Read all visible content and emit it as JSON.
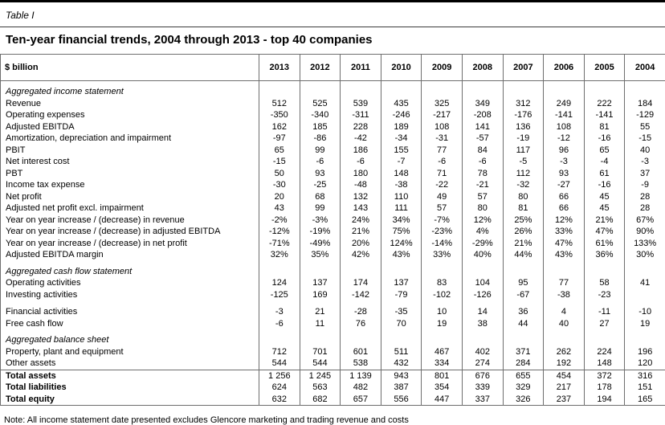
{
  "page": {
    "table_label": "Table I",
    "title": "Ten-year financial trends, 2004 through 2013 - top 40 companies",
    "note": "Note: All income statement date presented excludes Glencore marketing and trading revenue and costs"
  },
  "table": {
    "unit_header": "$ billion",
    "years": [
      "2013",
      "2012",
      "2011",
      "2010",
      "2009",
      "2008",
      "2007",
      "2006",
      "2005",
      "2004"
    ],
    "rows": [
      {
        "type": "section",
        "label": "Aggregated income statement"
      },
      {
        "type": "data",
        "label": "Revenue",
        "values": [
          "512",
          "525",
          "539",
          "435",
          "325",
          "349",
          "312",
          "249",
          "222",
          "184"
        ]
      },
      {
        "type": "data",
        "label": "Operating expenses",
        "values": [
          "-350",
          "-340",
          "-311",
          "-246",
          "-217",
          "-208",
          "-176",
          "-141",
          "-141",
          "-129"
        ]
      },
      {
        "type": "data",
        "label": "Adjusted EBITDA",
        "values": [
          "162",
          "185",
          "228",
          "189",
          "108",
          "141",
          "136",
          "108",
          "81",
          "55"
        ]
      },
      {
        "type": "data",
        "label": "Amortization, depreciation and impairment",
        "values": [
          "-97",
          "-86",
          "-42",
          "-34",
          "-31",
          "-57",
          "-19",
          "-12",
          "-16",
          "-15"
        ]
      },
      {
        "type": "data",
        "label": "PBIT",
        "values": [
          "65",
          "99",
          "186",
          "155",
          "77",
          "84",
          "117",
          "96",
          "65",
          "40"
        ]
      },
      {
        "type": "data",
        "label": "Net interest cost",
        "values": [
          "-15",
          "-6",
          "-6",
          "-7",
          "-6",
          "-6",
          "-5",
          "-3",
          "-4",
          "-3"
        ]
      },
      {
        "type": "data",
        "label": "PBT",
        "values": [
          "50",
          "93",
          "180",
          "148",
          "71",
          "78",
          "112",
          "93",
          "61",
          "37"
        ]
      },
      {
        "type": "data",
        "label": "Income tax expense",
        "values": [
          "-30",
          "-25",
          "-48",
          "-38",
          "-22",
          "-21",
          "-32",
          "-27",
          "-16",
          "-9"
        ]
      },
      {
        "type": "data",
        "label": "Net profit",
        "values": [
          "20",
          "68",
          "132",
          "110",
          "49",
          "57",
          "80",
          "66",
          "45",
          "28"
        ]
      },
      {
        "type": "data",
        "label": "Adjusted net profit excl. impairment",
        "values": [
          "43",
          "99",
          "143",
          "111",
          "57",
          "80",
          "81",
          "66",
          "45",
          "28"
        ]
      },
      {
        "type": "data",
        "label": "Year on year increase / (decrease) in revenue",
        "values": [
          "-2%",
          "-3%",
          "24%",
          "34%",
          "-7%",
          "12%",
          "25%",
          "12%",
          "21%",
          "67%"
        ]
      },
      {
        "type": "data",
        "label": "Year on year increase / (decrease) in adjusted EBITDA",
        "values": [
          "-12%",
          "-19%",
          "21%",
          "75%",
          "-23%",
          "4%",
          "26%",
          "33%",
          "47%",
          "90%"
        ]
      },
      {
        "type": "data",
        "label": "Year on year increase / (decrease) in net profit",
        "values": [
          "-71%",
          "-49%",
          "20%",
          "124%",
          "-14%",
          "-29%",
          "21%",
          "47%",
          "61%",
          "133%"
        ]
      },
      {
        "type": "data",
        "label": "Adjusted EBITDA margin",
        "values": [
          "32%",
          "35%",
          "42%",
          "43%",
          "33%",
          "40%",
          "44%",
          "43%",
          "36%",
          "30%"
        ]
      },
      {
        "type": "section",
        "label": "Aggregated cash flow statement"
      },
      {
        "type": "data",
        "label": "Operating activities",
        "values": [
          "124",
          "137",
          "174",
          "137",
          "83",
          "104",
          "95",
          "77",
          "58",
          "41"
        ]
      },
      {
        "type": "data",
        "label": "Investing activities",
        "values": [
          "-125",
          "169",
          "-142",
          "-79",
          "-102",
          "-126",
          "-67",
          "-38",
          "-23",
          ""
        ]
      },
      {
        "type": "spacer"
      },
      {
        "type": "data",
        "label": "Financial activities",
        "values": [
          "-3",
          "21",
          "-28",
          "-35",
          "10",
          "14",
          "36",
          "4",
          "-11",
          "-10"
        ]
      },
      {
        "type": "data",
        "label": "Free cash flow",
        "values": [
          "-6",
          "11",
          "76",
          "70",
          "19",
          "38",
          "44",
          "40",
          "27",
          "19"
        ]
      },
      {
        "type": "section",
        "label": "Aggregated balance sheet"
      },
      {
        "type": "data",
        "label": "Property, plant and equipment",
        "values": [
          "712",
          "701",
          "601",
          "511",
          "467",
          "402",
          "371",
          "262",
          "224",
          "196"
        ]
      },
      {
        "type": "data",
        "label": "Other assets",
        "values": [
          "544",
          "544",
          "538",
          "432",
          "334",
          "274",
          "284",
          "192",
          "148",
          "120"
        ]
      },
      {
        "type": "data",
        "label": "Total assets",
        "bold": true,
        "topline": true,
        "values": [
          "1 256",
          "1 245",
          "1 139",
          "943",
          "801",
          "676",
          "655",
          "454",
          "372",
          "316"
        ]
      },
      {
        "type": "data",
        "label": "Total liabilities",
        "bold": true,
        "values": [
          "624",
          "563",
          "482",
          "387",
          "354",
          "339",
          "329",
          "217",
          "178",
          "151"
        ]
      },
      {
        "type": "data",
        "label": "Total equity",
        "bold": true,
        "values": [
          "632",
          "682",
          "657",
          "556",
          "447",
          "337",
          "326",
          "237",
          "194",
          "165"
        ]
      }
    ]
  }
}
